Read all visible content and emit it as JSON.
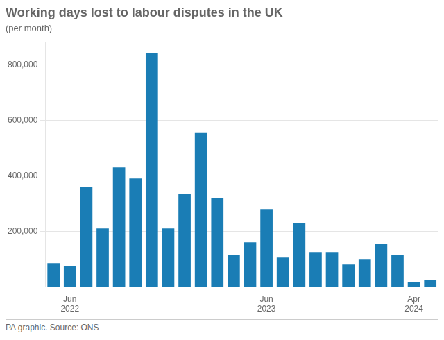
{
  "chart_data": {
    "type": "bar",
    "title": "Working days lost to labour disputes in the UK",
    "subtitle": "(per month)",
    "caption": "PA graphic. Source: ONS",
    "categories": [
      null,
      "Jun\n2022",
      null,
      null,
      null,
      null,
      null,
      null,
      null,
      null,
      null,
      null,
      null,
      "Jun\n2023",
      null,
      null,
      null,
      null,
      null,
      null,
      null,
      null,
      "Apr\n2024",
      null
    ],
    "values": [
      85000,
      75000,
      360000,
      210000,
      430000,
      390000,
      843000,
      210000,
      335000,
      556000,
      320000,
      115000,
      160000,
      280000,
      105000,
      230000,
      125000,
      125000,
      80000,
      100000,
      155000,
      115000,
      17000,
      25000
    ],
    "color": "#1a7db5",
    "ylim": [
      0,
      880000
    ],
    "yticks": [
      {
        "value": 200000,
        "label": "200,000"
      },
      {
        "value": 400000,
        "label": "400,000"
      },
      {
        "value": 600000,
        "label": "600,000"
      },
      {
        "value": 800000,
        "label": "800,000"
      }
    ],
    "grid": true
  }
}
